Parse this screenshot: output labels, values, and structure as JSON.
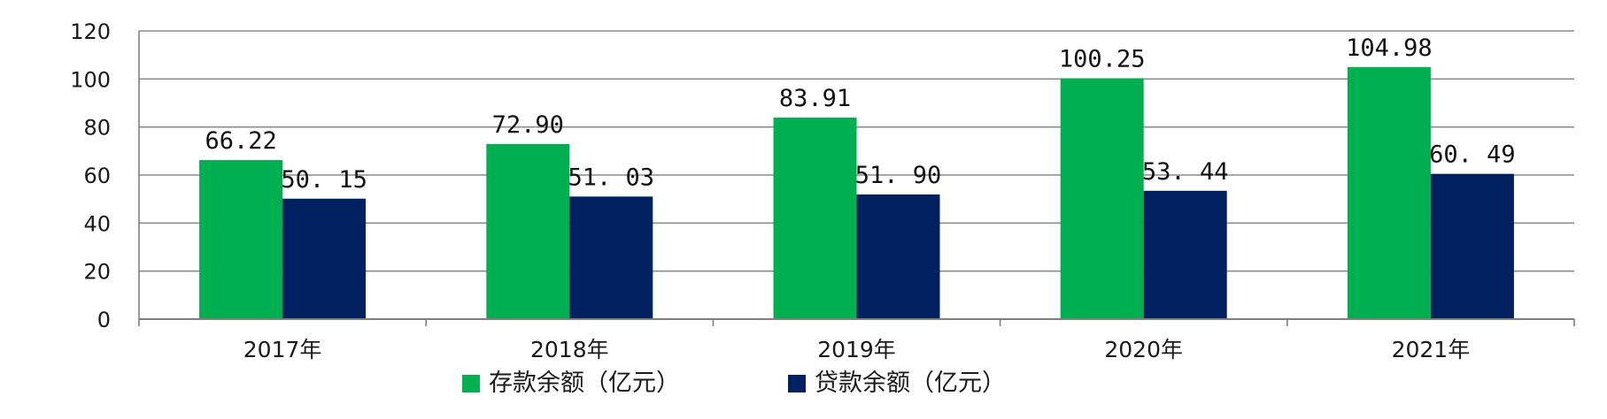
{
  "chart_data": {
    "type": "bar",
    "title": "",
    "xlabel": "",
    "ylabel": "",
    "categories": [
      "2017年",
      "2018年",
      "2019年",
      "2020年",
      "2021年"
    ],
    "series": [
      {
        "name": "存款余额（亿元）",
        "color": "#00b050",
        "values": [
          66.22,
          72.9,
          83.91,
          100.25,
          104.98
        ],
        "labels": [
          "66.22",
          "72.90",
          "83.91",
          "100.25",
          "104.98"
        ]
      },
      {
        "name": "贷款余额（亿元）",
        "color": "#002060",
        "values": [
          50.15,
          51.03,
          51.9,
          53.44,
          60.49
        ],
        "labels": [
          "50. 15",
          "51. 03",
          "51. 90",
          "53. 44",
          "60. 49"
        ]
      }
    ],
    "ylim": [
      0,
      120
    ],
    "yticks": [
      0,
      20,
      40,
      60,
      80,
      100,
      120
    ],
    "grid": true,
    "legend_position": "bottom"
  }
}
